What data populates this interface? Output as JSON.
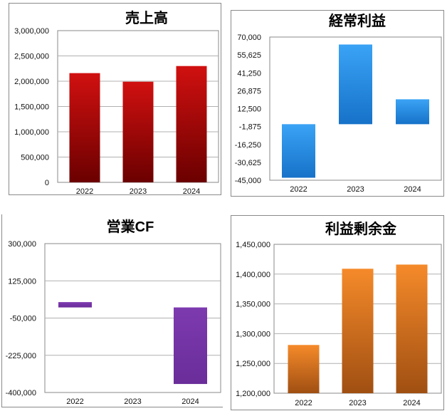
{
  "colors": {
    "bar1_top": "#d11010",
    "bar1_bottom": "#6b0000",
    "bar2_top": "#3aa3f5",
    "bar2_bottom": "#1672c8",
    "bar3_top": "#7d3ab0",
    "bar3_bottom": "#6a2d99",
    "bar4_top": "#f58a2a",
    "bar4_bottom": "#a04f12",
    "grid": "#b0b0b0",
    "frame": "#888888"
  },
  "chart_data": [
    {
      "type": "bar",
      "title": "売上高",
      "categories": [
        "2022",
        "2023",
        "2024"
      ],
      "values": [
        2160000,
        1990000,
        2300000
      ],
      "ylim": [
        0,
        3000000
      ],
      "yticks": [
        "3,000,000",
        "2,500,000",
        "2,000,000",
        "1,500,000",
        "1,000,000",
        "500,000",
        "0"
      ],
      "grid": true,
      "legend": "none"
    },
    {
      "type": "bar",
      "title": "経常利益",
      "categories": [
        "2022",
        "2023",
        "2024"
      ],
      "values": [
        -43000,
        64000,
        20000
      ],
      "ylim": [
        -45000,
        70000
      ],
      "yticks": [
        "70,000",
        "55,625",
        "41,250",
        "26,875",
        "12,500",
        "-1,875",
        "-16,250",
        "-30,625",
        "-45,000"
      ],
      "grid": false,
      "legend": "none"
    },
    {
      "type": "bar",
      "title": "営業CF",
      "categories": [
        "2022",
        "2023",
        "2024"
      ],
      "values": [
        25000,
        0,
        -360000
      ],
      "ylim": [
        -400000,
        300000
      ],
      "yticks": [
        "300,000",
        "125,000",
        "-50,000",
        "-225,000",
        "-400,000"
      ],
      "grid": true,
      "legend": "none"
    },
    {
      "type": "bar",
      "title": "利益剰余金",
      "categories": [
        "2022",
        "2023",
        "2024"
      ],
      "values": [
        1281000,
        1409000,
        1416000
      ],
      "ylim": [
        1200000,
        1450000
      ],
      "yticks": [
        "1,450,000",
        "1,400,000",
        "1,350,000",
        "1,300,000",
        "1,250,000",
        "1,200,000"
      ],
      "grid": true,
      "legend": "none"
    }
  ]
}
